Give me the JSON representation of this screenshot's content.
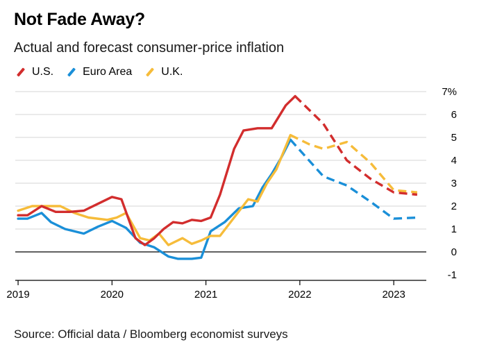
{
  "title": "Not Fade Away?",
  "subtitle": "Actual and forecast consumer-price inflation",
  "source": "Source: Official data / Bloomberg economist surveys",
  "colors": {
    "US": "#d22d2d",
    "Euro": "#1a8fd8",
    "UK": "#f6bc3a",
    "grid": "#d4d4d4",
    "axis": "#000000"
  },
  "chart_data": {
    "type": "line",
    "title": "Not Fade Away?",
    "subtitle": "Actual and forecast consumer-price inflation",
    "ylim": [
      -1,
      7
    ],
    "y_ticks": [
      -1,
      0,
      1,
      2,
      3,
      4,
      5,
      6,
      7
    ],
    "y_tick_labels": [
      "-1",
      "0",
      "1",
      "2",
      "3",
      "4",
      "5",
      "6",
      "7%"
    ],
    "xlim": [
      2018.97,
      2023.45
    ],
    "x_ticks": [
      2019,
      2020,
      2021,
      2022,
      2023
    ],
    "x_tick_labels": [
      "2019",
      "2020",
      "2021",
      "2022",
      "2023"
    ],
    "legend_position": "top-left",
    "grid": true,
    "series": [
      {
        "name": "U.S.",
        "color": "#d22d2d",
        "actual": [
          [
            2019.0,
            1.6
          ],
          [
            2019.1,
            1.6
          ],
          [
            2019.25,
            2.0
          ],
          [
            2019.4,
            1.75
          ],
          [
            2019.55,
            1.75
          ],
          [
            2019.7,
            1.8
          ],
          [
            2019.85,
            2.1
          ],
          [
            2020.0,
            2.4
          ],
          [
            2020.1,
            2.3
          ],
          [
            2020.25,
            0.6
          ],
          [
            2020.35,
            0.3
          ],
          [
            2020.45,
            0.6
          ],
          [
            2020.55,
            1.0
          ],
          [
            2020.65,
            1.3
          ],
          [
            2020.75,
            1.25
          ],
          [
            2020.85,
            1.4
          ],
          [
            2020.95,
            1.35
          ],
          [
            2021.05,
            1.5
          ],
          [
            2021.15,
            2.5
          ],
          [
            2021.3,
            4.5
          ],
          [
            2021.4,
            5.3
          ],
          [
            2021.55,
            5.4
          ],
          [
            2021.7,
            5.4
          ],
          [
            2021.85,
            6.4
          ],
          [
            2021.95,
            6.8
          ]
        ],
        "forecast": [
          [
            2021.95,
            6.8
          ],
          [
            2022.25,
            5.6
          ],
          [
            2022.5,
            4.0
          ],
          [
            2022.75,
            3.2
          ],
          [
            2023.0,
            2.6
          ],
          [
            2023.25,
            2.5
          ]
        ]
      },
      {
        "name": "Euro Area",
        "color": "#1a8fd8",
        "actual": [
          [
            2019.0,
            1.45
          ],
          [
            2019.1,
            1.45
          ],
          [
            2019.25,
            1.7
          ],
          [
            2019.35,
            1.3
          ],
          [
            2019.5,
            1.0
          ],
          [
            2019.7,
            0.8
          ],
          [
            2019.85,
            1.1
          ],
          [
            2020.0,
            1.35
          ],
          [
            2020.15,
            1.05
          ],
          [
            2020.3,
            0.4
          ],
          [
            2020.45,
            0.2
          ],
          [
            2020.6,
            -0.2
          ],
          [
            2020.7,
            -0.3
          ],
          [
            2020.85,
            -0.3
          ],
          [
            2020.95,
            -0.25
          ],
          [
            2021.05,
            0.9
          ],
          [
            2021.2,
            1.3
          ],
          [
            2021.35,
            1.9
          ],
          [
            2021.5,
            2.0
          ],
          [
            2021.6,
            2.8
          ],
          [
            2021.7,
            3.4
          ],
          [
            2021.8,
            4.1
          ],
          [
            2021.9,
            4.9
          ]
        ],
        "forecast": [
          [
            2021.9,
            4.9
          ],
          [
            2022.25,
            3.3
          ],
          [
            2022.5,
            2.9
          ],
          [
            2022.75,
            2.2
          ],
          [
            2023.0,
            1.45
          ],
          [
            2023.25,
            1.5
          ]
        ]
      },
      {
        "name": "U.K.",
        "color": "#f6bc3a",
        "actual": [
          [
            2019.0,
            1.8
          ],
          [
            2019.15,
            2.0
          ],
          [
            2019.3,
            2.0
          ],
          [
            2019.45,
            2.0
          ],
          [
            2019.6,
            1.7
          ],
          [
            2019.75,
            1.5
          ],
          [
            2019.95,
            1.4
          ],
          [
            2020.05,
            1.5
          ],
          [
            2020.15,
            1.7
          ],
          [
            2020.3,
            0.6
          ],
          [
            2020.4,
            0.5
          ],
          [
            2020.5,
            0.8
          ],
          [
            2020.6,
            0.3
          ],
          [
            2020.75,
            0.6
          ],
          [
            2020.85,
            0.35
          ],
          [
            2020.95,
            0.5
          ],
          [
            2021.05,
            0.7
          ],
          [
            2021.15,
            0.7
          ],
          [
            2021.3,
            1.5
          ],
          [
            2021.45,
            2.3
          ],
          [
            2021.55,
            2.2
          ],
          [
            2021.65,
            3.0
          ],
          [
            2021.75,
            3.6
          ],
          [
            2021.9,
            5.1
          ]
        ],
        "forecast": [
          [
            2021.9,
            5.1
          ],
          [
            2022.1,
            4.7
          ],
          [
            2022.25,
            4.5
          ],
          [
            2022.5,
            4.8
          ],
          [
            2022.75,
            3.9
          ],
          [
            2023.0,
            2.7
          ],
          [
            2023.25,
            2.6
          ]
        ]
      }
    ]
  }
}
